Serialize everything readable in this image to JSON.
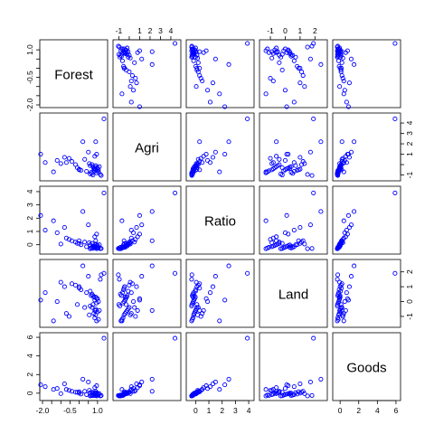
{
  "chart_data": {
    "type": "scatter",
    "kind": "pairs-matrix",
    "variables": [
      "Forest",
      "Agri",
      "Ratio",
      "Land",
      "Goods"
    ],
    "point_color": "#0000ff",
    "marker": "open-circle",
    "axis_ranges": {
      "Forest": [
        -2.0,
        1.4
      ],
      "Agri": [
        -1.3,
        4.7
      ],
      "Ratio": [
        -0.5,
        4.2
      ],
      "Land": [
        -1.55,
        2.65
      ],
      "Goods": [
        -0.5,
        6.2
      ]
    },
    "ticks": {
      "Forest": {
        "values": [
          -2.0,
          -1.5,
          -1.0,
          -0.5,
          0.0,
          0.5,
          1.0
        ],
        "labels": [
          "-2.0",
          "",
          "",
          "-0.5",
          "",
          "",
          "1.0"
        ]
      },
      "Agri": {
        "values": [
          -1,
          0,
          1,
          2,
          3,
          4
        ],
        "labels": [
          "-1",
          "",
          "1",
          "2",
          "3",
          "4"
        ]
      },
      "Ratio": {
        "values": [
          0,
          1,
          2,
          3,
          4
        ],
        "labels": [
          "0",
          "1",
          "2",
          "3",
          "4"
        ]
      },
      "Land": {
        "values": [
          -1,
          0,
          1,
          2
        ],
        "labels": [
          "-1",
          "0",
          "1",
          "2"
        ]
      },
      "Goods": {
        "values": [
          0,
          2,
          4,
          6
        ],
        "labels": [
          "0",
          "2",
          "4",
          "6"
        ]
      }
    },
    "columns": {
      "Forest": [
        0.95,
        1.05,
        0.85,
        0.9,
        0.8,
        1.0,
        1.1,
        0.9,
        0.7,
        0.6,
        0.75,
        0.95,
        1.05,
        0.85,
        1.0,
        0.9,
        0.65,
        0.7,
        0.4,
        0.1,
        0.0,
        -0.2,
        -0.4,
        -0.55,
        -0.7,
        0.85,
        0.95,
        0.75,
        0.6,
        -1.0,
        1.15,
        1.2,
        0.3,
        -0.1,
        -1.2,
        -1.85,
        -0.8,
        0.5,
        0.2,
        -1.4,
        -2.1,
        0.0,
        1.35,
        0.9,
        0.8,
        0.55
      ],
      "Agri": [
        -0.8,
        -0.7,
        -0.6,
        -0.5,
        -0.4,
        -0.3,
        -0.2,
        -0.1,
        0.0,
        -0.9,
        -1.0,
        -0.6,
        -0.5,
        -0.4,
        -0.35,
        -0.25,
        -0.75,
        -0.85,
        -0.65,
        -0.55,
        -0.45,
        0.0,
        0.3,
        0.6,
        0.2,
        0.8,
        1.0,
        -0.2,
        -0.1,
        0.1,
        -0.95,
        -1.05,
        0.5,
        -0.3,
        0.4,
        0.2,
        0.7,
        1.2,
        2.2,
        -0.7,
        1.0,
        -0.5,
        4.4,
        2.2,
        -0.4,
        0.1
      ],
      "Ratio": [
        -0.3,
        -0.25,
        -0.2,
        -0.15,
        -0.1,
        -0.05,
        0.0,
        0.05,
        0.1,
        -0.3,
        -0.28,
        -0.22,
        -0.18,
        -0.12,
        -0.08,
        -0.02,
        -0.25,
        -0.2,
        -0.15,
        0.0,
        0.1,
        0.2,
        0.3,
        0.4,
        0.5,
        0.6,
        0.8,
        -0.1,
        0.0,
        0.05,
        -0.3,
        -0.28,
        0.2,
        0.1,
        0.9,
        1.1,
        1.3,
        1.5,
        2.5,
        1.8,
        2.2,
        0.3,
        3.9,
        0.3,
        -0.2,
        0.15
      ],
      "Land": [
        -1.3,
        -1.2,
        -1.1,
        -0.9,
        -0.8,
        -0.7,
        -0.6,
        -0.5,
        -0.4,
        -0.3,
        -0.2,
        -0.1,
        0.0,
        0.1,
        0.2,
        0.3,
        0.4,
        0.5,
        0.6,
        0.8,
        1.0,
        1.1,
        1.2,
        -1.0,
        -0.8,
        -0.6,
        0.2,
        0.4,
        0.7,
        1.3,
        1.5,
        1.8,
        -0.4,
        -0.2,
        0.0,
        0.6,
        1.0,
        1.7,
        2.4,
        -1.3,
        0.1,
        0.9,
        1.9,
        -0.6,
        0.3,
        -0.9
      ],
      "Goods": [
        -0.3,
        -0.2,
        -0.25,
        -0.15,
        -0.1,
        0.0,
        -0.05,
        0.05,
        0.1,
        -0.3,
        -0.28,
        -0.2,
        -0.15,
        -0.1,
        -0.05,
        0.0,
        -0.25,
        -0.2,
        -0.15,
        -0.1,
        0.0,
        0.1,
        0.2,
        0.3,
        0.4,
        0.6,
        0.8,
        0.0,
        0.05,
        -0.05,
        -0.3,
        -0.25,
        0.2,
        0.1,
        0.5,
        0.7,
        1.0,
        1.2,
        1.5,
        0.4,
        0.9,
        0.15,
        5.9,
        0.2,
        -0.1,
        0.3
      ]
    }
  }
}
